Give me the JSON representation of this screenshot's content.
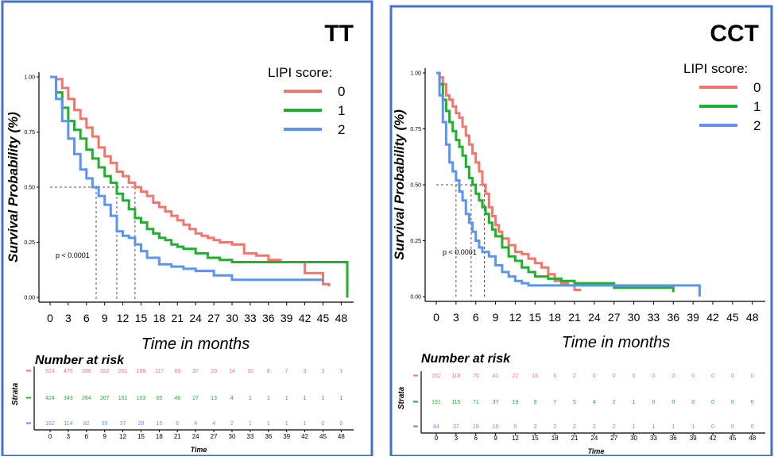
{
  "colors": {
    "score0": "#f2766b",
    "score1": "#1fb02e",
    "score2": "#5b95ef",
    "frame": "#4472c4"
  },
  "legend": {
    "title": "LIPI score:",
    "labels": [
      "0",
      "1",
      "2"
    ]
  },
  "chart_data": [
    {
      "type": "line",
      "title": "TT",
      "xlabel": "Time in months",
      "ylabel": "Survival Probability (%)",
      "pvalue_text": "p < 0.0001",
      "y_ticks": [
        "0.00",
        "0.25",
        "0.50",
        "0.75",
        "1.00"
      ],
      "x_ticks": [
        "0",
        "3",
        "6",
        "9",
        "12",
        "15",
        "18",
        "21",
        "24",
        "27",
        "30",
        "33",
        "36",
        "39",
        "42",
        "45",
        "48"
      ],
      "xlim": [
        0,
        49
      ],
      "ylim": [
        0,
        1
      ],
      "median_line_y": 0.5,
      "medians": [
        14,
        11,
        7.6
      ],
      "series": [
        {
          "name": "0",
          "x": [
            0,
            1,
            2,
            3,
            4,
            5,
            6,
            7,
            8,
            9,
            10,
            11,
            12,
            13,
            14,
            15,
            16,
            17,
            18,
            19,
            20,
            21,
            22,
            23,
            24,
            25,
            26,
            27,
            28,
            30,
            32,
            34,
            36,
            38,
            40,
            42,
            44,
            45,
            46
          ],
          "y": [
            1.0,
            0.99,
            0.95,
            0.9,
            0.85,
            0.81,
            0.77,
            0.73,
            0.68,
            0.64,
            0.61,
            0.57,
            0.55,
            0.52,
            0.5,
            0.48,
            0.46,
            0.43,
            0.41,
            0.39,
            0.37,
            0.35,
            0.33,
            0.31,
            0.29,
            0.28,
            0.27,
            0.26,
            0.25,
            0.24,
            0.2,
            0.19,
            0.17,
            0.16,
            0.16,
            0.11,
            0.11,
            0.06,
            0.05
          ]
        },
        {
          "name": "1",
          "x": [
            0,
            1,
            2,
            3,
            4,
            5,
            6,
            7,
            8,
            9,
            10,
            11,
            12,
            13,
            14,
            15,
            16,
            17,
            18,
            19,
            20,
            21,
            22,
            24,
            26,
            28,
            30,
            32,
            34,
            36,
            40,
            44,
            49,
            49
          ],
          "y": [
            1.0,
            0.93,
            0.86,
            0.8,
            0.76,
            0.72,
            0.67,
            0.63,
            0.59,
            0.55,
            0.52,
            0.47,
            0.44,
            0.4,
            0.36,
            0.34,
            0.31,
            0.29,
            0.27,
            0.26,
            0.24,
            0.23,
            0.22,
            0.2,
            0.18,
            0.17,
            0.16,
            0.16,
            0.16,
            0.16,
            0.16,
            0.16,
            0.16,
            0.0
          ]
        },
        {
          "name": "2",
          "x": [
            0,
            1,
            2,
            3,
            4,
            5,
            6,
            7,
            8,
            9,
            10,
            11,
            12,
            13,
            14,
            15,
            16,
            18,
            20,
            22,
            24,
            27,
            30,
            33,
            36,
            39,
            42,
            45
          ],
          "y": [
            1.0,
            0.9,
            0.8,
            0.72,
            0.65,
            0.58,
            0.54,
            0.5,
            0.46,
            0.42,
            0.37,
            0.3,
            0.28,
            0.27,
            0.24,
            0.21,
            0.18,
            0.15,
            0.14,
            0.13,
            0.12,
            0.1,
            0.08,
            0.08,
            0.08,
            0.08,
            0.08,
            0.08
          ]
        }
      ],
      "risk_table": {
        "title": "Number at risk",
        "strata_label": "Strata",
        "xlabel": "Time",
        "x_ticks": [
          "0",
          "3",
          "6",
          "9",
          "12",
          "15",
          "18",
          "21",
          "24",
          "27",
          "30",
          "33",
          "36",
          "39",
          "42",
          "45",
          "48"
        ],
        "rows": [
          [
            "524",
            "475",
            "398",
            "322",
            "261",
            "199",
            "117",
            "69",
            "37",
            "20",
            "14",
            "10",
            "8",
            "7",
            "3",
            "3",
            "1"
          ],
          [
            "424",
            "343",
            "264",
            "207",
            "151",
            "103",
            "65",
            "46",
            "27",
            "13",
            "4",
            "1",
            "1",
            "1",
            "1",
            "1",
            "1"
          ],
          [
            "162",
            "114",
            "82",
            "59",
            "37",
            "28",
            "15",
            "6",
            "4",
            "4",
            "2",
            "1",
            "1",
            "1",
            "1",
            "0",
            "0"
          ]
        ]
      }
    },
    {
      "type": "line",
      "title": "CCT",
      "xlabel": "Time in months",
      "ylabel": "Survival Probability (%)",
      "pvalue_text": "p < 0.0001",
      "y_ticks": [
        "0.00",
        "0.25",
        "0.50",
        "0.75",
        "1.00"
      ],
      "x_ticks": [
        "0",
        "3",
        "6",
        "9",
        "12",
        "15",
        "18",
        "21",
        "24",
        "27",
        "30",
        "33",
        "36",
        "39",
        "42",
        "45",
        "48"
      ],
      "xlim": [
        0,
        49
      ],
      "ylim": [
        0,
        1
      ],
      "median_line_y": 0.5,
      "medians": [
        7.3,
        5.3,
        3
      ],
      "series": [
        {
          "name": "0",
          "x": [
            0,
            0.5,
            1,
            1.5,
            2,
            2.5,
            3,
            3.5,
            4,
            4.5,
            5,
            5.5,
            6,
            6.5,
            7,
            7.5,
            8,
            8.5,
            9,
            9.5,
            10,
            11,
            12,
            13,
            14,
            15,
            16,
            17,
            18,
            19,
            20,
            21,
            22
          ],
          "y": [
            1.0,
            0.98,
            0.95,
            0.9,
            0.88,
            0.85,
            0.82,
            0.8,
            0.76,
            0.72,
            0.68,
            0.64,
            0.6,
            0.56,
            0.5,
            0.46,
            0.4,
            0.36,
            0.32,
            0.29,
            0.26,
            0.23,
            0.2,
            0.19,
            0.17,
            0.15,
            0.13,
            0.1,
            0.07,
            0.06,
            0.05,
            0.03,
            0.03
          ]
        },
        {
          "name": "1",
          "x": [
            0,
            0.5,
            1,
            1.5,
            2,
            2.5,
            3,
            3.5,
            4,
            4.5,
            5,
            5.5,
            6,
            6.5,
            7,
            7.5,
            8,
            8.5,
            9,
            10,
            11,
            12,
            13,
            14,
            15,
            17,
            19,
            21,
            23,
            25,
            27,
            30,
            33,
            36
          ],
          "y": [
            1.0,
            0.95,
            0.88,
            0.83,
            0.78,
            0.74,
            0.7,
            0.67,
            0.63,
            0.58,
            0.53,
            0.5,
            0.46,
            0.43,
            0.4,
            0.37,
            0.33,
            0.3,
            0.27,
            0.22,
            0.18,
            0.16,
            0.13,
            0.11,
            0.09,
            0.08,
            0.07,
            0.06,
            0.06,
            0.06,
            0.04,
            0.04,
            0.04,
            0.02
          ]
        },
        {
          "name": "2",
          "x": [
            0,
            0.5,
            1,
            1.5,
            2,
            2.5,
            3,
            3.5,
            4,
            4.5,
            5,
            5.5,
            6,
            6.5,
            7,
            8,
            9,
            10,
            11,
            12,
            13,
            14,
            16,
            18,
            20,
            24,
            28,
            32,
            36,
            40,
            40
          ],
          "y": [
            1.0,
            0.9,
            0.78,
            0.68,
            0.6,
            0.56,
            0.52,
            0.47,
            0.43,
            0.37,
            0.33,
            0.29,
            0.25,
            0.22,
            0.2,
            0.18,
            0.14,
            0.11,
            0.09,
            0.07,
            0.06,
            0.05,
            0.05,
            0.05,
            0.05,
            0.05,
            0.05,
            0.05,
            0.05,
            0.05,
            0.0
          ]
        }
      ],
      "risk_table": {
        "title": "Number at risk",
        "strata_label": "Strata",
        "xlabel": "Time",
        "x_ticks": [
          "0",
          "3",
          "6",
          "9",
          "12",
          "15",
          "18",
          "21",
          "24",
          "27",
          "30",
          "33",
          "36",
          "39",
          "42",
          "45",
          "48"
        ],
        "rows": [
          [
            "162",
            "118",
            "75",
            "41",
            "22",
            "16",
            "6",
            "2",
            "0",
            "0",
            "0",
            "0",
            "0",
            "0",
            "0",
            "0",
            "0"
          ],
          [
            "191",
            "115",
            "71",
            "37",
            "19",
            "9",
            "7",
            "5",
            "4",
            "2",
            "1",
            "0",
            "0",
            "0",
            "0",
            "0",
            "0"
          ],
          [
            "84",
            "37",
            "19",
            "10",
            "5",
            "3",
            "2",
            "2",
            "2",
            "2",
            "1",
            "1",
            "1",
            "1",
            "0",
            "0",
            "0"
          ]
        ]
      }
    }
  ]
}
